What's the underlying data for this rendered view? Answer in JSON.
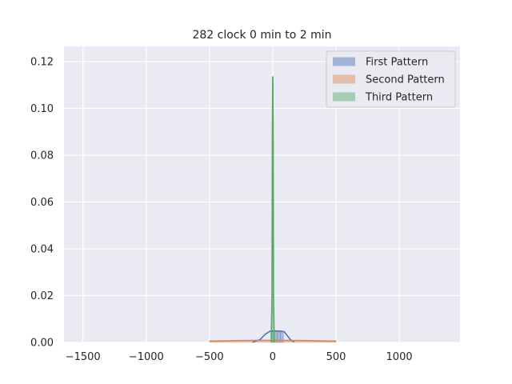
{
  "chart_data": {
    "type": "area",
    "title": "282 clock 0 min to 2 min",
    "xlabel": "",
    "ylabel": "",
    "xlim": [
      -1650,
      1480
    ],
    "ylim": [
      0,
      0.1265
    ],
    "x_ticks": [
      -1500,
      -1000,
      -500,
      0,
      500,
      1000
    ],
    "x_tick_labels": [
      "−1500",
      "−1000",
      "−500",
      "0",
      "500",
      "1000"
    ],
    "y_ticks": [
      0,
      0.02,
      0.04,
      0.06,
      0.08,
      0.1,
      0.12
    ],
    "y_tick_labels": [
      "0.00",
      "0.02",
      "0.04",
      "0.06",
      "0.08",
      "0.10",
      "0.12"
    ],
    "grid": true,
    "legend_position": "top-right",
    "series": [
      {
        "name": "First Pattern",
        "color": "#4c72b0",
        "histogram": {
          "bin_edges": [
            -15,
            10,
            35,
            60,
            85
          ],
          "heights": [
            0.0049,
            0.0049,
            0.0048,
            0.0046
          ]
        },
        "kde": {
          "x": [
            -160,
            -100,
            -60,
            -20,
            0,
            20,
            60,
            90,
            110,
            140,
            170
          ],
          "y": [
            0.0001,
            0.0012,
            0.0035,
            0.0048,
            0.0049,
            0.0049,
            0.0048,
            0.0046,
            0.0032,
            0.0012,
            0.0002
          ]
        }
      },
      {
        "name": "Second Pattern",
        "color": "#dd8452",
        "histogram": {
          "bin_edges": [
            -500,
            500
          ],
          "heights": [
            0.0008
          ]
        },
        "kde": {
          "x": [
            -500,
            -250,
            0,
            250,
            500
          ],
          "y": [
            0.0005,
            0.0008,
            0.0009,
            0.0008,
            0.0005
          ]
        }
      },
      {
        "name": "Third Pattern",
        "color": "#55a868",
        "histogram": {
          "bin_edges": [
            -3,
            3
          ],
          "heights": [
            0.1135
          ]
        },
        "kde": {
          "x": [
            -12,
            -6,
            -3,
            0,
            3,
            6,
            12
          ],
          "y": [
            0.0,
            0.02,
            0.09,
            0.1135,
            0.09,
            0.02,
            0.0
          ]
        }
      }
    ]
  }
}
